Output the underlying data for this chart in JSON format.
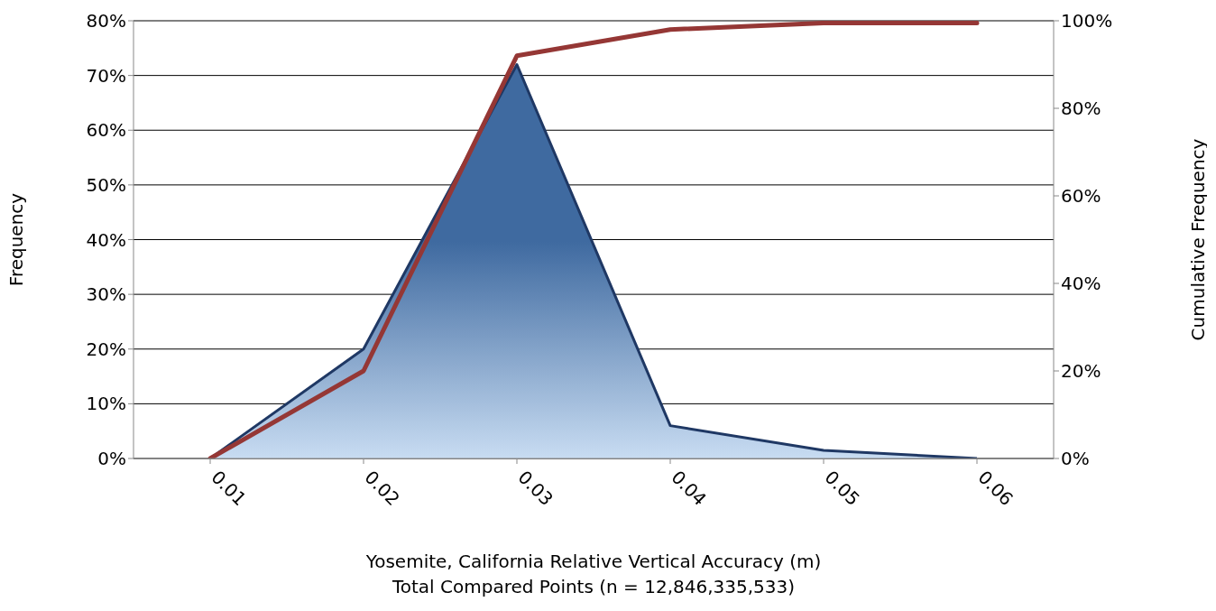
{
  "chart_data": {
    "type": "area",
    "xlabel": "Yosemite, California Relative Vertical Accuracy (m)",
    "annotations": [
      "Total Compared Points (n = 12,846,335,533)"
    ],
    "ylabel": "Frequency",
    "y2label": "Cumulative Frequency",
    "categories": [
      "0.01",
      "0.02",
      "0.03",
      "0.04",
      "0.05",
      "0.06"
    ],
    "series": [
      {
        "color": "#3f6aa0",
        "values": [
          0,
          20,
          72,
          6,
          1.5,
          0
        ]
      },
      {
        "type": "line",
        "axis": "y2",
        "color": "#953735",
        "values": [
          0,
          20,
          92,
          98,
          99.5,
          99.5
        ]
      }
    ],
    "ylim": [
      0,
      80
    ],
    "yticks": [
      {
        "value": 0,
        "label": "0%"
      },
      {
        "value": 10,
        "label": "10%"
      },
      {
        "value": 20,
        "label": "20%"
      },
      {
        "value": 30,
        "label": "30%"
      },
      {
        "value": 40,
        "label": "40%"
      },
      {
        "value": 50,
        "label": "50%"
      },
      {
        "value": 60,
        "label": "60%"
      },
      {
        "value": 70,
        "label": "70%"
      },
      {
        "value": 80,
        "label": "80%"
      }
    ],
    "y2lim": [
      0,
      100
    ],
    "y2ticks": [
      {
        "value": 0,
        "label": "0%"
      },
      {
        "value": 20,
        "label": "20%"
      },
      {
        "value": 40,
        "label": "40%"
      },
      {
        "value": 60,
        "label": "60%"
      },
      {
        "value": 80,
        "label": "80%"
      },
      {
        "value": 100,
        "label": "100%"
      }
    ],
    "grid": "y",
    "marker": "none",
    "line_style": "solid"
  }
}
